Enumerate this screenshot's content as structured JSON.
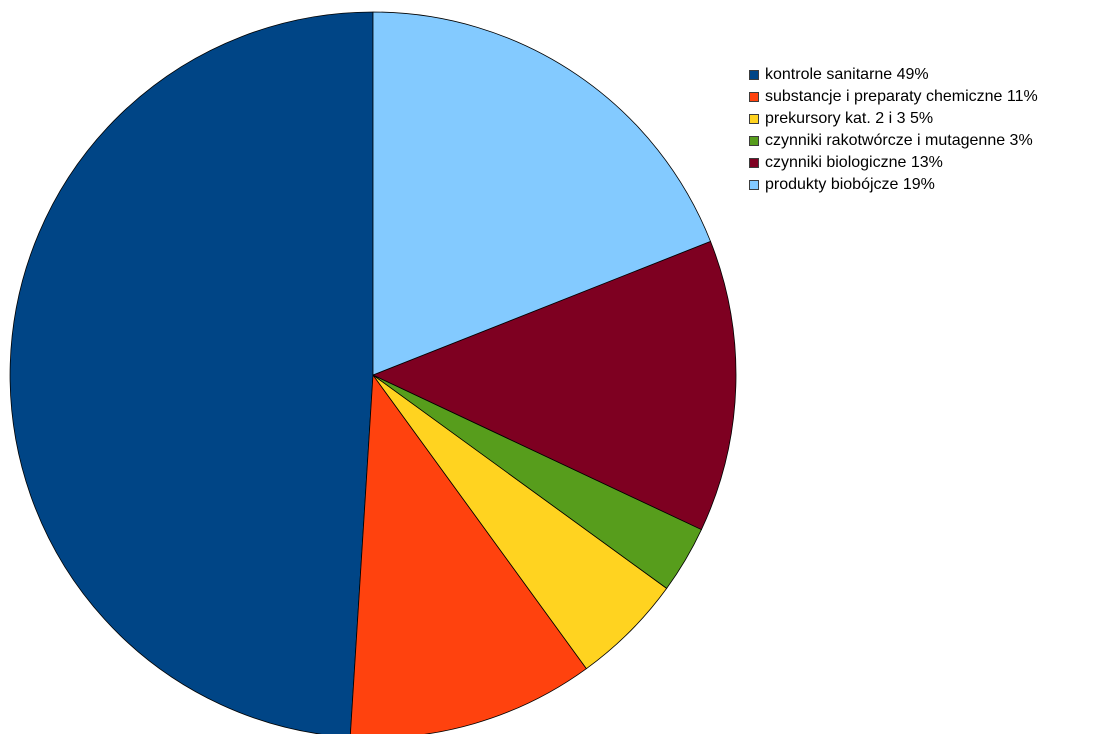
{
  "chart_data": {
    "type": "pie",
    "title": "",
    "start_angle_deg": 0,
    "direction": "counterclockwise",
    "categories": [
      "kontrole sanitarne 49%",
      "substancje i preparaty chemiczne 11%",
      "prekursory kat. 2 i 3  5%",
      "czynniki rakotwórcze i mutagenne 3%",
      "czynniki biologiczne 13%",
      "produkty biobójcze 19%"
    ],
    "values": [
      49,
      11,
      5,
      3,
      13,
      19
    ],
    "colors": [
      "#004586",
      "#ff420e",
      "#ffd320",
      "#579d1c",
      "#7e0021",
      "#83caff"
    ],
    "legend_position": "right",
    "slice_stroke": "#000000"
  }
}
